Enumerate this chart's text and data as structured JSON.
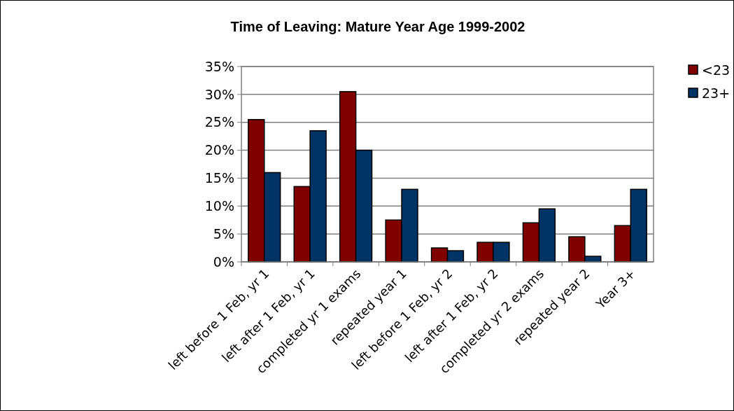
{
  "chart_data": {
    "type": "bar",
    "title": "Time of Leaving: Mature Year Age 1999-2002",
    "categories": [
      "left before 1 Feb, yr 1",
      "left after 1 Feb, yr 1",
      "completed yr 1 exams",
      "repeated year 1",
      "left before 1 Feb, yr 2",
      "left after 1 Feb, yr 2",
      "completed yr 2 exams",
      "repeated year 2",
      "Year 3+"
    ],
    "series": [
      {
        "name": "<23",
        "color": "#800000",
        "values": [
          25.5,
          13.5,
          30.5,
          7.5,
          2.5,
          3.5,
          7,
          4.5,
          6.5
        ]
      },
      {
        "name": "23+",
        "color": "#003366",
        "values": [
          16,
          23.5,
          20,
          13,
          2,
          3.5,
          9.5,
          1,
          13
        ]
      }
    ],
    "ylim": [
      0,
      35
    ],
    "yticks": [
      {
        "value": 0,
        "label": "0%"
      },
      {
        "value": 5,
        "label": "5%"
      },
      {
        "value": 10,
        "label": "10%"
      },
      {
        "value": 15,
        "label": "15%"
      },
      {
        "value": 20,
        "label": "20%"
      },
      {
        "value": 25,
        "label": "25%"
      },
      {
        "value": 30,
        "label": "30%"
      },
      {
        "value": 35,
        "label": "35%"
      }
    ],
    "grid": "y",
    "legend": "right"
  }
}
